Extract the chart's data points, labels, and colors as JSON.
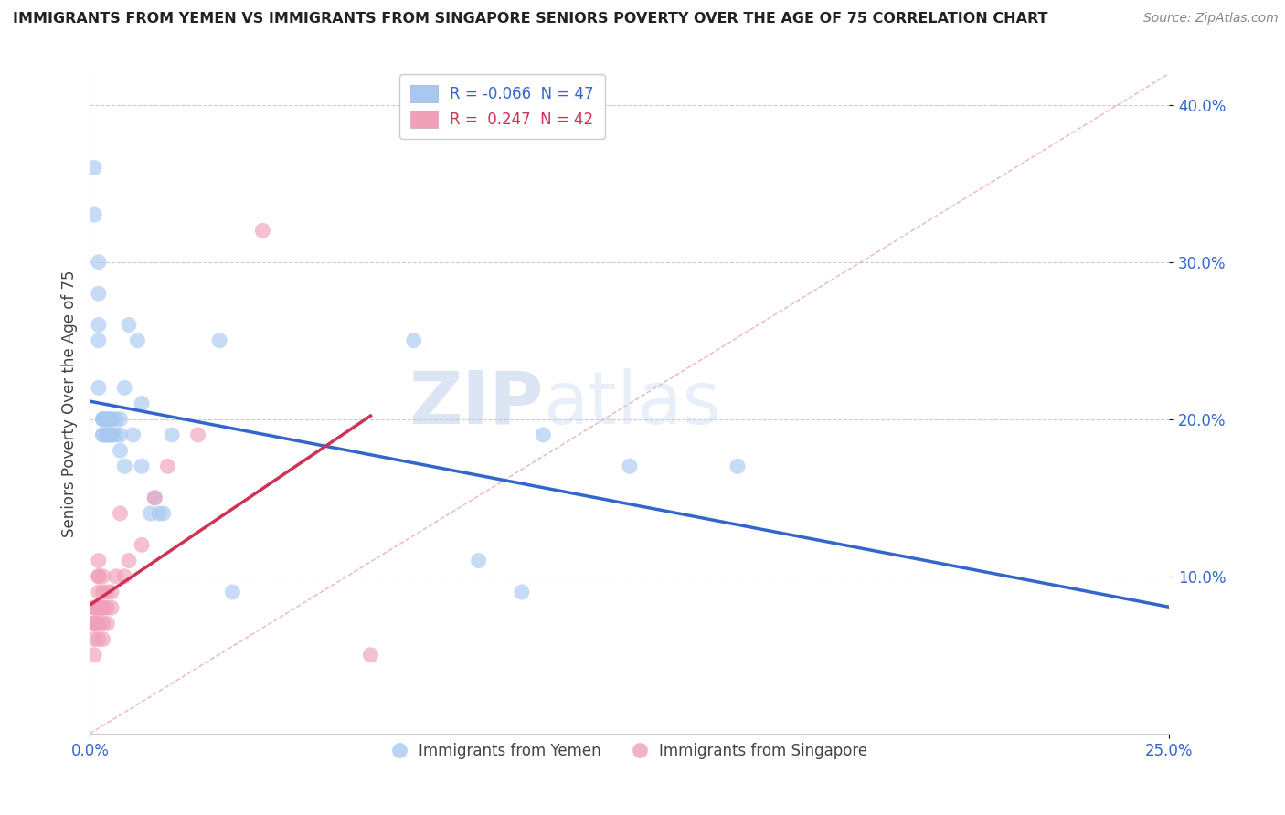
{
  "title": "IMMIGRANTS FROM YEMEN VS IMMIGRANTS FROM SINGAPORE SENIORS POVERTY OVER THE AGE OF 75 CORRELATION CHART",
  "source": "Source: ZipAtlas.com",
  "ylabel": "Seniors Poverty Over the Age of 75",
  "R_yemen": -0.066,
  "N_yemen": 47,
  "R_singapore": 0.247,
  "N_singapore": 42,
  "watermark_zip": "ZIP",
  "watermark_atlas": "atlas",
  "xlim": [
    0.0,
    0.25
  ],
  "ylim": [
    0.0,
    0.42
  ],
  "color_yemen": "#a8c8f0",
  "color_singapore": "#f0a0b8",
  "line_color_yemen": "#3366cc",
  "line_color_singapore": "#cc3355",
  "diag_color": "#e8a0b0",
  "background_color": "#ffffff",
  "yemen_x": [
    0.001,
    0.001,
    0.002,
    0.002,
    0.002,
    0.002,
    0.002,
    0.003,
    0.003,
    0.003,
    0.003,
    0.003,
    0.004,
    0.004,
    0.004,
    0.004,
    0.004,
    0.005,
    0.005,
    0.005,
    0.005,
    0.005,
    0.006,
    0.006,
    0.007,
    0.007,
    0.007,
    0.008,
    0.008,
    0.009,
    0.01,
    0.011,
    0.012,
    0.012,
    0.014,
    0.015,
    0.016,
    0.017,
    0.019,
    0.03,
    0.033,
    0.075,
    0.09,
    0.1,
    0.105,
    0.125,
    0.15
  ],
  "yemen_y": [
    0.36,
    0.33,
    0.3,
    0.28,
    0.26,
    0.25,
    0.22,
    0.2,
    0.2,
    0.2,
    0.19,
    0.19,
    0.2,
    0.2,
    0.19,
    0.19,
    0.19,
    0.2,
    0.2,
    0.19,
    0.19,
    0.19,
    0.2,
    0.19,
    0.2,
    0.19,
    0.18,
    0.22,
    0.17,
    0.26,
    0.19,
    0.25,
    0.17,
    0.21,
    0.14,
    0.15,
    0.14,
    0.14,
    0.19,
    0.25,
    0.09,
    0.25,
    0.11,
    0.09,
    0.19,
    0.17,
    0.17
  ],
  "singapore_x": [
    0.001,
    0.001,
    0.001,
    0.001,
    0.001,
    0.001,
    0.001,
    0.001,
    0.001,
    0.001,
    0.002,
    0.002,
    0.002,
    0.002,
    0.002,
    0.002,
    0.002,
    0.002,
    0.002,
    0.002,
    0.003,
    0.003,
    0.003,
    0.003,
    0.003,
    0.003,
    0.003,
    0.004,
    0.004,
    0.004,
    0.005,
    0.005,
    0.006,
    0.007,
    0.008,
    0.009,
    0.012,
    0.015,
    0.018,
    0.025,
    0.04,
    0.065
  ],
  "singapore_y": [
    0.08,
    0.08,
    0.07,
    0.07,
    0.07,
    0.07,
    0.07,
    0.07,
    0.06,
    0.05,
    0.11,
    0.1,
    0.1,
    0.09,
    0.08,
    0.08,
    0.08,
    0.07,
    0.07,
    0.06,
    0.1,
    0.09,
    0.08,
    0.08,
    0.08,
    0.07,
    0.06,
    0.09,
    0.08,
    0.07,
    0.09,
    0.08,
    0.1,
    0.14,
    0.1,
    0.11,
    0.12,
    0.15,
    0.17,
    0.19,
    0.32,
    0.05
  ]
}
